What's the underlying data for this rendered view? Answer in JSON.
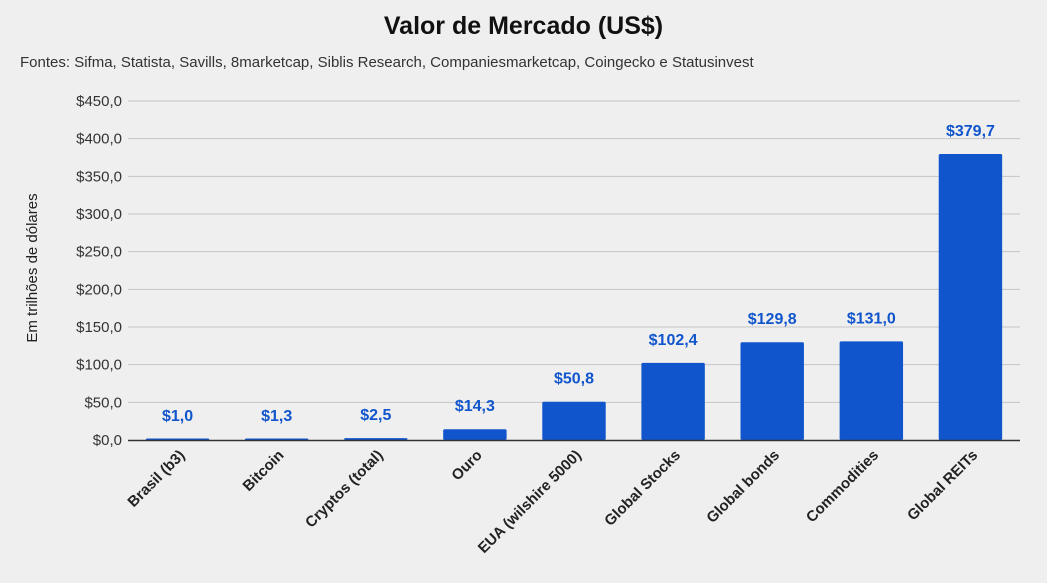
{
  "chart_data": {
    "type": "bar",
    "title": "Valor de Mercado (US$)",
    "subtitle": "Fontes: Sifma, Statista, Savills, 8marketcap, Siblis Research, Companiesmarketcap, Coingecko e Statusinvest",
    "ylabel": "Em trilhões de dólares",
    "xlabel": "",
    "ylim": [
      0,
      450
    ],
    "yticks": [
      0,
      50,
      100,
      150,
      200,
      250,
      300,
      350,
      400,
      450
    ],
    "ytick_labels": [
      "$0,0",
      "$50,0",
      "$100,0",
      "$150,0",
      "$200,0",
      "$250,0",
      "$300,0",
      "$350,0",
      "$400,0",
      "$450,0"
    ],
    "grid": true,
    "legend": "none",
    "categories": [
      "Brasil (b3)",
      "Bitcoin",
      "Cryptos (total)",
      "Ouro",
      "EUA (wilshire 5000)",
      "Global Stocks",
      "Global bonds",
      "Commodities",
      "Global REITs"
    ],
    "values": [
      1.0,
      1.3,
      2.5,
      14.3,
      50.8,
      102.4,
      129.8,
      131.0,
      379.7
    ],
    "data_labels": [
      "$1,0",
      "$1,3",
      "$2,5",
      "$14,3",
      "$50,8",
      "$102,4",
      "$129,8",
      "$131,0",
      "$379,7"
    ],
    "colors": {
      "bar": "#1155cc",
      "data_label": "#1155cc",
      "grid": "#c4c4c4",
      "axis": "#333333",
      "background": "#efefef"
    }
  }
}
